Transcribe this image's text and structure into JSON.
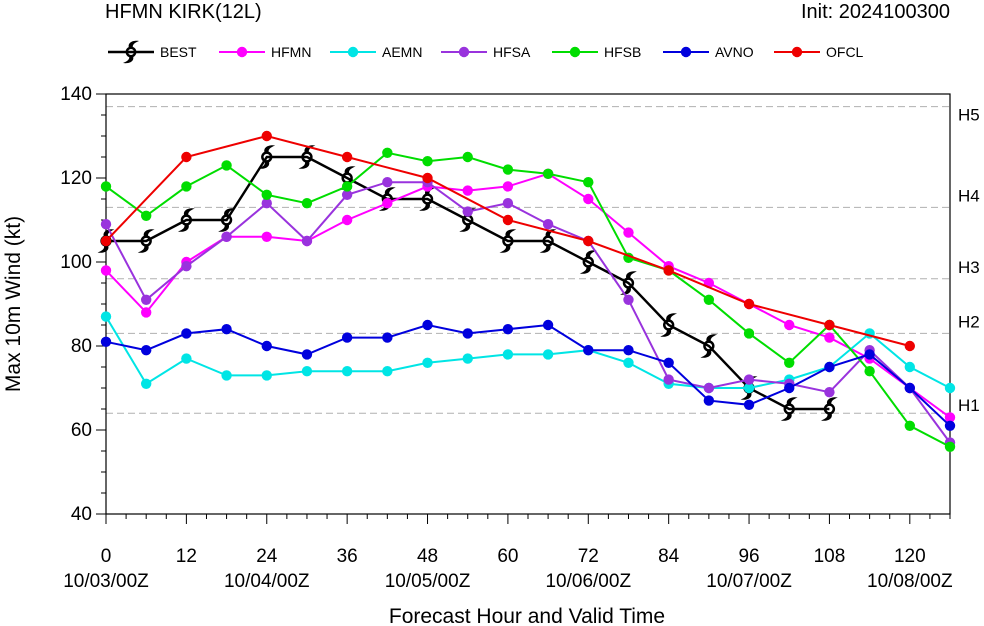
{
  "chart_data": {
    "type": "line",
    "title": "HFMN KIRK(12L)",
    "init_label": "Init: 2024100300",
    "xlabel": "Forecast Hour and Valid Time",
    "ylabel": "Max 10m Wind (kt)",
    "xlim": [
      0,
      126
    ],
    "ylim": [
      40,
      140
    ],
    "x_ticks": [
      0,
      12,
      24,
      36,
      48,
      60,
      72,
      84,
      96,
      108,
      120
    ],
    "x_tick_labels": [
      "0",
      "12",
      "24",
      "36",
      "48",
      "60",
      "72",
      "84",
      "96",
      "108",
      "120"
    ],
    "date_labels": [
      {
        "x": 0,
        "label": "10/03/00Z"
      },
      {
        "x": 24,
        "label": "10/04/00Z"
      },
      {
        "x": 48,
        "label": "10/05/00Z"
      },
      {
        "x": 72,
        "label": "10/06/00Z"
      },
      {
        "x": 96,
        "label": "10/07/00Z"
      },
      {
        "x": 120,
        "label": "10/08/00Z"
      }
    ],
    "y_ticks": [
      40,
      60,
      80,
      100,
      120,
      140
    ],
    "y_tick_labels": [
      "40",
      "60",
      "80",
      "100",
      "120",
      "140"
    ],
    "category_lines": [
      {
        "y": 64,
        "label": "H1"
      },
      {
        "y": 83,
        "label": "H2"
      },
      {
        "y": 96,
        "label": "H3"
      },
      {
        "y": 113,
        "label": "H4"
      },
      {
        "y": 137,
        "label": "H5"
      }
    ],
    "legend_position": "top",
    "series": [
      {
        "name": "BEST",
        "color": "#000000",
        "marker": "hurricane-symbol",
        "x": [
          0,
          6,
          12,
          18,
          24,
          30,
          36,
          42,
          48,
          54,
          60,
          66,
          72,
          78,
          84,
          90,
          96,
          102,
          108
        ],
        "y": [
          105,
          105,
          110,
          110,
          125,
          125,
          120,
          115,
          115,
          110,
          105,
          105,
          100,
          95,
          85,
          80,
          70,
          65,
          65
        ]
      },
      {
        "name": "HFMN",
        "color": "#ff00ff",
        "marker": "circle",
        "x": [
          0,
          6,
          12,
          18,
          24,
          30,
          36,
          42,
          48,
          54,
          60,
          66,
          72,
          78,
          84,
          90,
          96,
          102,
          108,
          114,
          120,
          126
        ],
        "y": [
          98,
          88,
          100,
          106,
          106,
          105,
          110,
          114,
          118,
          117,
          118,
          121,
          115,
          107,
          99,
          95,
          90,
          85,
          82,
          77,
          70,
          63
        ]
      },
      {
        "name": "AEMN",
        "color": "#00e5e5",
        "marker": "circle",
        "x": [
          0,
          6,
          12,
          18,
          24,
          30,
          36,
          42,
          48,
          54,
          60,
          66,
          72,
          78,
          84,
          90,
          96,
          102,
          108,
          114,
          120,
          126
        ],
        "y": [
          87,
          71,
          77,
          73,
          73,
          74,
          74,
          74,
          76,
          77,
          78,
          78,
          79,
          76,
          71,
          70,
          70,
          72,
          75,
          83,
          75,
          70
        ]
      },
      {
        "name": "HFSA",
        "color": "#9933dd",
        "marker": "circle",
        "x": [
          0,
          6,
          12,
          18,
          24,
          30,
          36,
          42,
          48,
          54,
          60,
          66,
          72,
          78,
          84,
          90,
          96,
          102,
          108,
          114,
          120,
          126
        ],
        "y": [
          109,
          91,
          99,
          106,
          114,
          105,
          116,
          119,
          119,
          112,
          114,
          109,
          105,
          91,
          72,
          70,
          72,
          71,
          69,
          79,
          70,
          57
        ]
      },
      {
        "name": "HFSB",
        "color": "#00dd00",
        "marker": "circle",
        "x": [
          0,
          6,
          12,
          18,
          24,
          30,
          36,
          42,
          48,
          54,
          60,
          66,
          72,
          78,
          84,
          90,
          96,
          102,
          108,
          114,
          120,
          126
        ],
        "y": [
          118,
          111,
          118,
          123,
          116,
          114,
          118,
          126,
          124,
          125,
          122,
          121,
          119,
          101,
          98,
          91,
          83,
          76,
          85,
          74,
          61,
          56
        ]
      },
      {
        "name": "AVNO",
        "color": "#0000dd",
        "marker": "circle",
        "x": [
          0,
          6,
          12,
          18,
          24,
          30,
          36,
          42,
          48,
          54,
          60,
          66,
          72,
          78,
          84,
          90,
          96,
          102,
          108,
          114,
          120,
          126
        ],
        "y": [
          81,
          79,
          83,
          84,
          80,
          78,
          82,
          82,
          85,
          83,
          84,
          85,
          79,
          79,
          76,
          67,
          66,
          70,
          75,
          78,
          70,
          61
        ]
      },
      {
        "name": "OFCL",
        "color": "#ee0000",
        "marker": "circle",
        "x": [
          0,
          12,
          24,
          36,
          48,
          60,
          72,
          84,
          96,
          108,
          120
        ],
        "y": [
          105,
          125,
          130,
          125,
          120,
          110,
          105,
          98,
          90,
          85,
          80
        ]
      }
    ]
  }
}
